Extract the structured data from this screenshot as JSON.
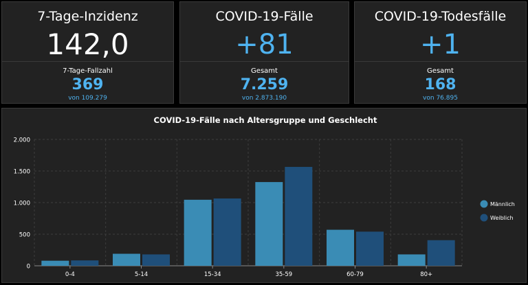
{
  "colors": {
    "accent": "#4fb3f0",
    "male": "#3a8cb5",
    "female": "#1f4f7a",
    "panel": "#222222"
  },
  "cards": [
    {
      "title": "7-Tage-Inzidenz",
      "main": "142,0",
      "sub_label": "7-Tage-Fallzahl",
      "sub_value": "369",
      "sub_note": "von 109.279"
    },
    {
      "title": "COVID-19-Fälle",
      "main": "+81",
      "sub_label": "Gesamt",
      "sub_value": "7.259",
      "sub_note": "von 2.873.190"
    },
    {
      "title": "COVID-19-Todesfälle",
      "main": "+1",
      "sub_label": "Gesamt",
      "sub_value": "168",
      "sub_note": "von 76.895"
    }
  ],
  "chart_data": {
    "type": "bar",
    "title": "COVID-19-Fälle nach Altersgruppe und Geschlecht",
    "xlabel": "",
    "ylabel": "",
    "categories": [
      "0-4",
      "5-14",
      "15-34",
      "35-59",
      "60-79",
      "80+"
    ],
    "series": [
      {
        "name": "Männlich",
        "values": [
          80,
          190,
          1045,
          1325,
          570,
          180
        ]
      },
      {
        "name": "Weiblich",
        "values": [
          85,
          180,
          1065,
          1565,
          540,
          405
        ]
      }
    ],
    "ylim": [
      0,
      2000
    ],
    "yticks": [
      0,
      500,
      1000,
      1500,
      2000
    ],
    "ytick_labels": [
      "0",
      "500",
      "1.000",
      "1.500",
      "2.000"
    ],
    "grid": true,
    "legend_position": "right"
  }
}
